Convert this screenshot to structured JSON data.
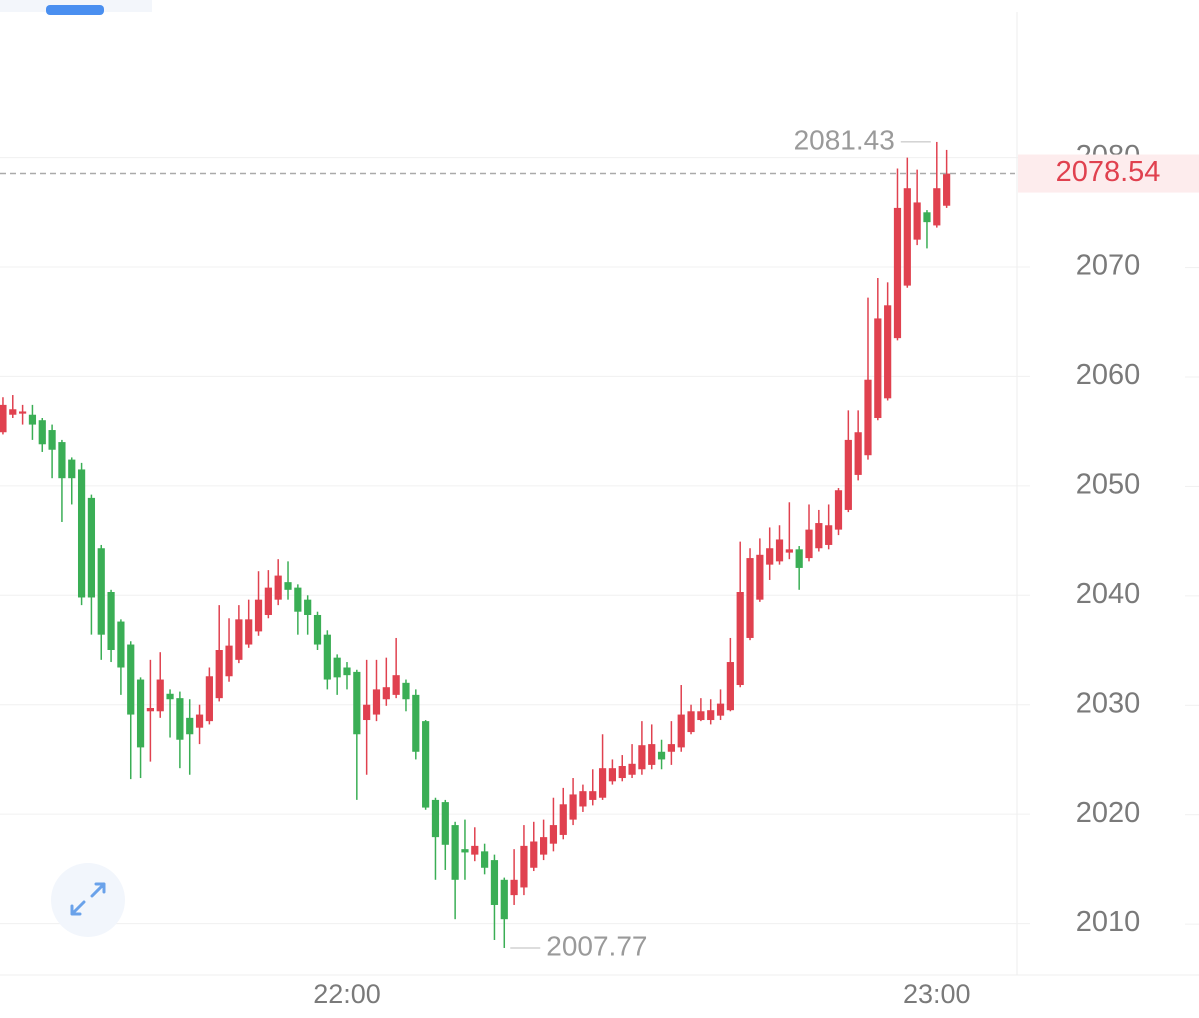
{
  "chart_data": {
    "type": "candlestick",
    "categories": [
      null,
      null,
      null,
      null,
      null,
      null,
      null,
      null,
      null,
      null,
      null,
      null,
      null,
      null,
      null,
      null,
      null,
      null,
      null,
      null,
      null,
      null,
      null,
      null,
      null,
      null,
      null,
      null,
      null,
      null,
      null,
      null,
      null,
      null,
      null,
      "22:00",
      null,
      null,
      null,
      null,
      null,
      null,
      null,
      null,
      null,
      null,
      null,
      null,
      null,
      null,
      null,
      null,
      null,
      null,
      null,
      null,
      null,
      null,
      null,
      null,
      null,
      null,
      null,
      null,
      null,
      null,
      null,
      null,
      null,
      null,
      null,
      null,
      null,
      null,
      null,
      null,
      null,
      null,
      null,
      null,
      null,
      null,
      null,
      null,
      null,
      null,
      null,
      null,
      null,
      null,
      null,
      null,
      null,
      null,
      null,
      "23:00",
      null
    ],
    "open": [
      2054.9,
      2056.5,
      2056.6,
      2056.5,
      2056.0,
      2055.1,
      2054.0,
      2052.4,
      2051.5,
      2048.9,
      2044.3,
      2040.3,
      2037.6,
      2035.5,
      2032.3,
      2029.4,
      2029.4,
      2031.0,
      2030.6,
      2028.8,
      2027.9,
      2028.5,
      2030.6,
      2032.6,
      2034.1,
      2035.5,
      2036.7,
      2038.2,
      2039.6,
      2041.2,
      2040.7,
      2039.6,
      2038.2,
      2036.4,
      2034.3,
      2033.4,
      2033.0,
      2028.6,
      2029.1,
      2030.5,
      2030.9,
      2032.0,
      2030.9,
      2028.5,
      2021.3,
      2021.1,
      2019.0,
      2016.8,
      2016.3,
      2016.6,
      2015.8,
      2014.0,
      2012.6,
      2013.3,
      2015.1,
      2016.3,
      2017.3,
      2018.1,
      2019.5,
      2020.7,
      2021.3,
      2021.5,
      2023.0,
      2023.3,
      2023.6,
      2024.1,
      2024.5,
      2025.7,
      2025.7,
      2026.1,
      2027.5,
      2028.6,
      2028.6,
      2029.0,
      2029.5,
      2031.8,
      2036.1,
      2039.6,
      2042.8,
      2043.1,
      2043.9,
      2044.2,
      2043.4,
      2044.3,
      2044.6,
      2046.0,
      2047.8,
      2051.0,
      2052.8,
      2056.2,
      2058.0,
      2063.5,
      2068.3,
      2072.5,
      2075.0,
      2073.8,
      2075.6
    ],
    "high": [
      2058.1,
      2058.3,
      2057.4,
      2057.4,
      2056.2,
      2055.6,
      2054.2,
      2052.6,
      2052.1,
      2049.2,
      2044.6,
      2040.5,
      2037.8,
      2035.8,
      2032.5,
      2034.1,
      2034.8,
      2031.4,
      2031.2,
      2030.5,
      2030.0,
      2033.4,
      2039.1,
      2037.9,
      2039.1,
      2039.6,
      2042.2,
      2042.3,
      2043.3,
      2043.1,
      2041.0,
      2040.0,
      2038.5,
      2036.8,
      2034.6,
      2033.9,
      2033.2,
      2034.1,
      2034.1,
      2034.3,
      2036.1,
      2032.3,
      2031.4,
      2028.6,
      2021.5,
      2021.3,
      2019.3,
      2019.5,
      2018.8,
      2017.3,
      2016.3,
      2014.2,
      2016.8,
      2019.0,
      2019.3,
      2019.5,
      2021.5,
      2022.4,
      2023.3,
      2022.7,
      2024.1,
      2027.3,
      2025.0,
      2025.4,
      2026.4,
      2028.5,
      2028.2,
      2026.8,
      2028.5,
      2031.8,
      2030.0,
      2030.6,
      2030.5,
      2031.4,
      2036.1,
      2044.9,
      2044.3,
      2045.2,
      2046.2,
      2046.4,
      2048.5,
      2044.5,
      2048.3,
      2047.8,
      2048.3,
      2049.8,
      2056.9,
      2056.9,
      2067.2,
      2069.0,
      2068.6,
      2079.0,
      2080.0,
      2078.9,
      2075.2,
      2081.43,
      2080.7
    ],
    "low": [
      2054.7,
      2056.2,
      2055.6,
      2054.2,
      2053.1,
      2050.7,
      2046.7,
      2048.3,
      2039.1,
      2036.4,
      2034.1,
      2033.9,
      2030.9,
      2023.2,
      2023.3,
      2024.8,
      2028.8,
      2027.0,
      2024.2,
      2023.6,
      2026.4,
      2028.2,
      2030.3,
      2032.1,
      2033.8,
      2035.2,
      2036.3,
      2037.9,
      2039.1,
      2039.6,
      2036.4,
      2036.4,
      2035.0,
      2031.4,
      2030.9,
      2031.4,
      2021.3,
      2023.6,
      2028.5,
      2029.9,
      2030.6,
      2029.4,
      2025.0,
      2020.4,
      2014.0,
      2014.9,
      2010.4,
      2014.0,
      2015.7,
      2014.5,
      2008.5,
      2007.77,
      2011.7,
      2012.6,
      2014.8,
      2015.8,
      2016.6,
      2017.7,
      2019.0,
      2020.2,
      2020.8,
      2021.3,
      2022.7,
      2023.0,
      2023.3,
      2023.6,
      2024.1,
      2024.1,
      2024.5,
      2025.7,
      2027.3,
      2028.5,
      2028.2,
      2028.6,
      2029.4,
      2031.6,
      2035.9,
      2039.4,
      2041.4,
      2042.8,
      2043.3,
      2040.5,
      2043.1,
      2044.0,
      2044.2,
      2045.5,
      2047.6,
      2050.5,
      2052.4,
      2056.0,
      2057.8,
      2063.3,
      2068.1,
      2072.0,
      2071.7,
      2073.6,
      2075.4
    ],
    "close": [
      2057.4,
      2057.0,
      2056.8,
      2055.6,
      2053.8,
      2053.3,
      2050.7,
      2050.7,
      2039.8,
      2039.8,
      2036.4,
      2035.0,
      2033.4,
      2029.1,
      2026.1,
      2029.7,
      2032.3,
      2030.5,
      2026.8,
      2027.3,
      2029.1,
      2032.6,
      2035.0,
      2035.4,
      2037.8,
      2037.8,
      2039.6,
      2040.7,
      2041.8,
      2040.5,
      2038.5,
      2038.2,
      2035.5,
      2032.3,
      2032.5,
      2032.7,
      2027.3,
      2030.0,
      2031.4,
      2031.6,
      2032.7,
      2030.5,
      2025.7,
      2020.6,
      2017.9,
      2017.2,
      2014.0,
      2016.5,
      2017.1,
      2015.1,
      2011.7,
      2010.4,
      2014.0,
      2017.1,
      2017.5,
      2017.9,
      2019.0,
      2020.9,
      2021.8,
      2022.1,
      2022.1,
      2024.2,
      2024.2,
      2024.4,
      2024.6,
      2026.3,
      2026.4,
      2025.0,
      2026.4,
      2029.1,
      2029.4,
      2029.4,
      2029.5,
      2030.1,
      2033.9,
      2040.3,
      2043.4,
      2043.7,
      2044.3,
      2045.1,
      2044.2,
      2042.5,
      2046.0,
      2046.6,
      2046.4,
      2049.6,
      2054.2,
      2054.9,
      2059.7,
      2065.3,
      2066.5,
      2075.4,
      2077.2,
      2075.9,
      2074.1,
      2077.2,
      2078.54
    ],
    "up_color": "#e0414f",
    "down_color": "#3aae55",
    "ylim": [
      2005.3,
      2094.4
    ],
    "yticks": [
      2010,
      2020,
      2030,
      2040,
      2050,
      2060,
      2070,
      2080
    ],
    "grid": true
  }
}
